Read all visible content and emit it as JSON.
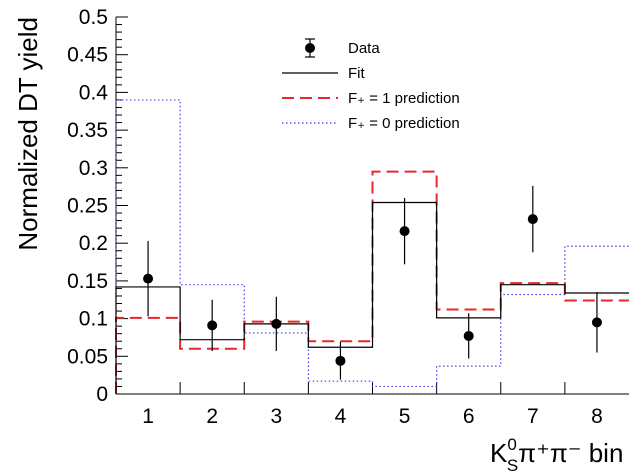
{
  "chart_data": {
    "type": "histogram",
    "ylabel": "Normalized DT yield",
    "xlabel": {
      "main": "K",
      "sup": "0",
      "sub": "S",
      "rest": "π⁺π⁻ bin"
    },
    "categories": [
      "1",
      "2",
      "3",
      "4",
      "5",
      "6",
      "7",
      "8"
    ],
    "ylim": [
      0,
      0.5
    ],
    "yticks": [
      "0",
      "0.05",
      "0.1",
      "0.15",
      "0.2",
      "0.25",
      "0.3",
      "0.35",
      "0.4",
      "0.45",
      "0.5"
    ],
    "grid": false,
    "legend_position": "top-right",
    "series": [
      {
        "name": "Data",
        "style": "points",
        "color": "#000000",
        "values": [
          0.153,
          0.091,
          0.093,
          0.044,
          0.216,
          0.077,
          0.232,
          0.095
        ],
        "errors": [
          0.05,
          0.034,
          0.036,
          0.025,
          0.044,
          0.03,
          0.044,
          0.04
        ]
      },
      {
        "name": "Fit",
        "style": "step",
        "color": "#000000",
        "dash": "none",
        "values": [
          0.142,
          0.072,
          0.093,
          0.062,
          0.254,
          0.101,
          0.145,
          0.134
        ]
      },
      {
        "name": "F₊ = 1 prediction",
        "style": "step",
        "color": "#e8272a",
        "dash": "long",
        "values": [
          0.101,
          0.06,
          0.096,
          0.07,
          0.295,
          0.112,
          0.147,
          0.124
        ]
      },
      {
        "name": "F₊ = 0 prediction",
        "style": "step",
        "color": "#4040e8",
        "dash": "dot",
        "values": [
          0.39,
          0.145,
          0.081,
          0.017,
          0.01,
          0.037,
          0.132,
          0.196
        ]
      }
    ]
  }
}
